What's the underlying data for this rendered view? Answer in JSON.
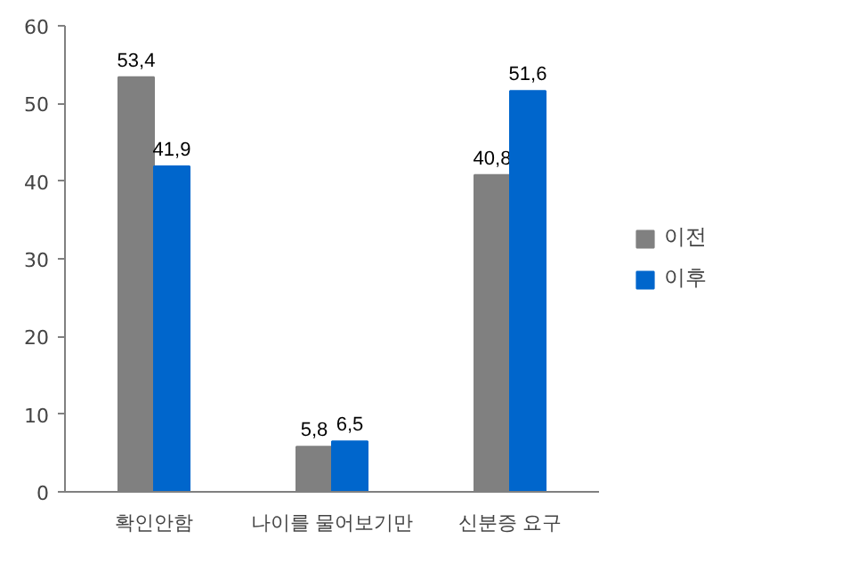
{
  "chart_data": {
    "type": "bar",
    "categories": [
      "확인안함",
      "나이를 물어보기만",
      "신분증 요구"
    ],
    "series": [
      {
        "name": "이전",
        "color": "#808080",
        "values": [
          53.4,
          5.8,
          40.8
        ],
        "value_labels": [
          "53,4",
          "5,8",
          "40,8"
        ]
      },
      {
        "name": "이후",
        "color": "#0066cc",
        "values": [
          41.9,
          6.5,
          51.6
        ],
        "value_labels": [
          "41,9",
          "6,5",
          "51,6"
        ]
      }
    ],
    "ylim": [
      0,
      60
    ],
    "yticks": [
      0,
      10,
      20,
      30,
      40,
      50,
      60
    ],
    "grid": false,
    "legend": "right"
  }
}
